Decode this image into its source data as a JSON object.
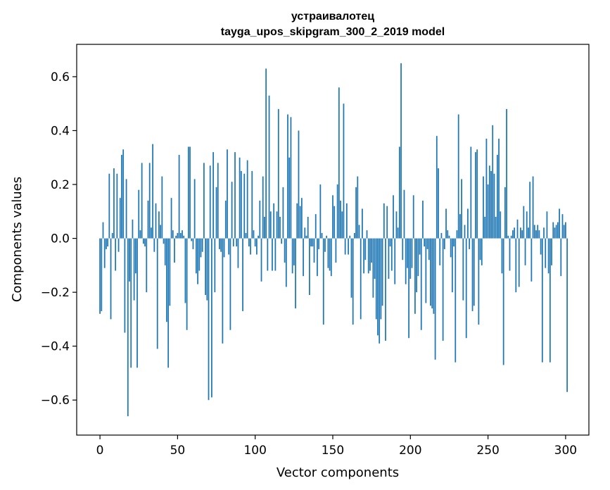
{
  "chart_data": {
    "type": "bar",
    "title_line1": "устраивалотец",
    "title_line2": "tayga_upos_skipgram_300_2_2019 model",
    "xlabel": "Vector components",
    "ylabel": "Components values",
    "xlim": [
      -15,
      315
    ],
    "ylim": [
      -0.73,
      0.72
    ],
    "xticks": [
      0,
      50,
      100,
      150,
      200,
      250,
      300
    ],
    "xtick_labels": [
      "0",
      "50",
      "100",
      "150",
      "200",
      "250",
      "300"
    ],
    "yticks": [
      -0.6,
      -0.4,
      -0.2,
      0.0,
      0.2,
      0.4,
      0.6
    ],
    "ytick_labels": [
      "−0.6",
      "−0.4",
      "−0.2",
      "0.0",
      "0.2",
      "0.4",
      "0.6"
    ],
    "bar_color": "#1f77b4",
    "values": [
      -0.28,
      -0.27,
      0.06,
      -0.11,
      -0.04,
      -0.03,
      0.24,
      -0.3,
      0.02,
      0.26,
      -0.12,
      0.24,
      -0.05,
      0.15,
      0.31,
      0.33,
      -0.35,
      0.22,
      -0.66,
      -0.16,
      -0.48,
      0.07,
      -0.23,
      -0.13,
      -0.48,
      0.18,
      0.03,
      0.28,
      -0.02,
      -0.03,
      -0.2,
      0.14,
      0.28,
      0.04,
      0.35,
      -0.05,
      0.13,
      -0.41,
      0.1,
      0.05,
      0.23,
      -0.02,
      -0.1,
      -0.31,
      -0.48,
      -0.25,
      0.15,
      0.03,
      -0.09,
      0.01,
      0.02,
      0.31,
      0.02,
      0.03,
      0.01,
      -0.24,
      -0.34,
      0.34,
      0.34,
      -0.01,
      -0.04,
      0.22,
      -0.13,
      -0.17,
      -0.12,
      -0.07,
      -0.05,
      0.28,
      -0.21,
      -0.23,
      -0.6,
      0.27,
      -0.59,
      0.32,
      -0.2,
      0.19,
      0.28,
      -0.04,
      -0.05,
      -0.39,
      -0.07,
      0.14,
      0.33,
      -0.06,
      -0.34,
      0.21,
      -0.03,
      0.32,
      -0.03,
      -0.11,
      0.3,
      0.25,
      -0.27,
      0.24,
      0.02,
      0.29,
      -0.03,
      -0.06,
      0.25,
      0.03,
      -0.03,
      -0.06,
      0.01,
      0.14,
      -0.16,
      0.23,
      0.08,
      0.63,
      -0.12,
      0.53,
      0.1,
      -0.12,
      0.13,
      -0.12,
      0.1,
      0.48,
      0.08,
      -0.02,
      0.19,
      -0.09,
      -0.18,
      0.46,
      0.3,
      0.45,
      -0.13,
      -0.1,
      -0.26,
      0.13,
      0.4,
      0.12,
      0.15,
      -0.14,
      0.04,
      0.01,
      0.08,
      -0.21,
      -0.03,
      -0.03,
      -0.09,
      0.09,
      -0.14,
      -0.04,
      0.2,
      0.02,
      -0.32,
      -0.05,
      0.01,
      -0.11,
      -0.12,
      -0.14,
      0.16,
      0.12,
      -0.09,
      0.2,
      0.56,
      0.14,
      0.1,
      0.5,
      -0.06,
      0.13,
      -0.06,
      0.01,
      -0.22,
      -0.32,
      0.02,
      0.19,
      0.23,
      0.05,
      -0.3,
      0.11,
      -0.13,
      -0.08,
      0.03,
      -0.13,
      -0.12,
      -0.09,
      -0.22,
      -0.15,
      -0.3,
      -0.36,
      -0.39,
      -0.3,
      -0.25,
      0.13,
      -0.38,
      0.12,
      -0.15,
      -0.03,
      -0.12,
      0.16,
      -0.17,
      0.1,
      0.04,
      0.34,
      0.65,
      -0.08,
      0.18,
      -0.17,
      -0.11,
      -0.37,
      -0.15,
      -0.11,
      0.16,
      -0.28,
      -0.2,
      -0.14,
      -0.06,
      -0.34,
      0.14,
      -0.03,
      -0.24,
      -0.04,
      -0.08,
      -0.25,
      -0.26,
      -0.28,
      -0.45,
      0.38,
      0.26,
      -0.1,
      0.02,
      -0.38,
      -0.04,
      0.11,
      0.03,
      0.01,
      -0.07,
      -0.2,
      -0.03,
      -0.46,
      0.03,
      0.46,
      0.09,
      0.22,
      -0.23,
      0.05,
      -0.37,
      0.11,
      -0.04,
      0.34,
      -0.27,
      -0.25,
      0.32,
      0.33,
      -0.32,
      -0.08,
      -0.1,
      0.23,
      0.08,
      0.37,
      0.2,
      0.27,
      0.25,
      0.42,
      0.24,
      0.08,
      0.31,
      0.37,
      0.1,
      -0.13,
      -0.47,
      0.19,
      0.48,
      0.01,
      -0.12,
      0.01,
      0.03,
      0.04,
      -0.2,
      0.07,
      -0.18,
      0.04,
      0.03,
      0.12,
      -0.1,
      0.1,
      0.04,
      0.21,
      -0.16,
      0.23,
      0.05,
      0.03,
      0.05,
      0.03,
      -0.06,
      -0.46,
      0.04,
      -0.11,
      0.1,
      -0.13,
      -0.46,
      -0.1,
      0.06,
      0.04,
      0.05,
      0.06,
      0.11,
      -0.14,
      0.09,
      0.05,
      0.06,
      -0.57
    ]
  }
}
